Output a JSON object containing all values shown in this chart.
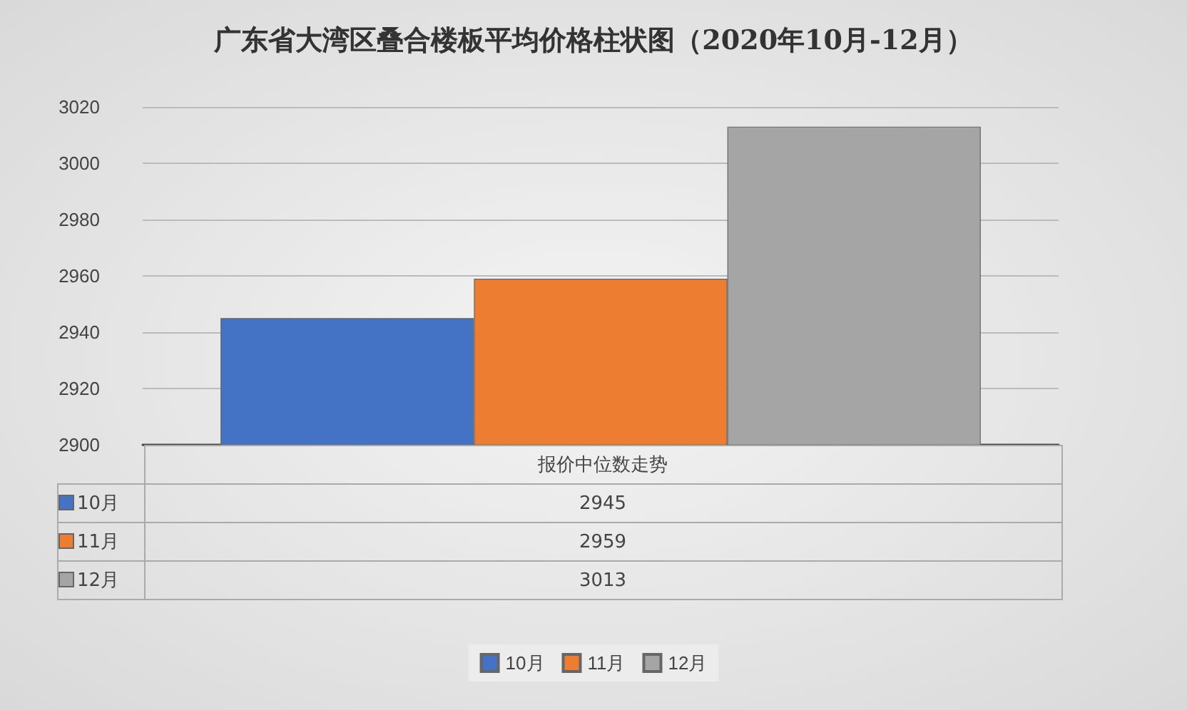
{
  "chart_data": {
    "type": "bar",
    "title": "广东省大湾区叠合楼板平均价格柱状图（2020年10月-12月）",
    "categories": [
      "报价中位数走势"
    ],
    "series": [
      {
        "name": "10月",
        "color": "#4472c4",
        "values": [
          2945
        ]
      },
      {
        "name": "11月",
        "color": "#ed7d31",
        "values": [
          2959
        ]
      },
      {
        "name": "12月",
        "color": "#a5a5a5",
        "values": [
          3013
        ]
      }
    ],
    "ylim": [
      2900,
      3020
    ],
    "yticks": [
      2900,
      2920,
      2940,
      2960,
      2980,
      3000,
      3020
    ],
    "grid": "y",
    "legend": "bottom",
    "annotations": [
      "2945",
      "2959",
      "3013"
    ]
  }
}
